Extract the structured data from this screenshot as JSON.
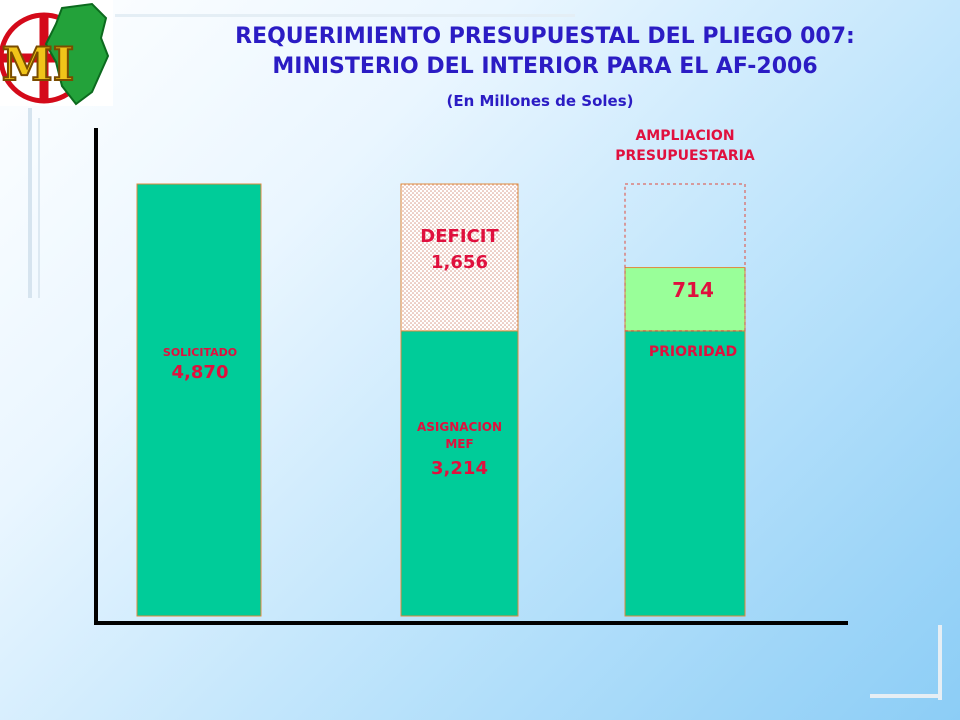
{
  "title": {
    "line1": "REQUERIMIENTO PRESUPUESTAL DEL PLIEGO 007:",
    "line2": "MINISTERIO DEL INTERIOR   PARA EL AF-2006"
  },
  "subtitle": "(En Millones de Soles)",
  "logo": {
    "text": "MI",
    "icon": "peru-map-logo-icon"
  },
  "colors": {
    "title": "#2b1cc4",
    "label": "#e0103e",
    "bar_green": "#00cc99",
    "bar_light_green": "#99ff99",
    "bar_border": "#e08a3c",
    "axis": "#000000"
  },
  "chart_data": {
    "type": "bar",
    "stacked": true,
    "ylim": [
      0,
      4870
    ],
    "categories": [
      "SOLICITADO",
      "ASIGNACION MEF",
      "AMPLIACION PRESUPUESTARIA"
    ],
    "series": [
      {
        "name": "",
        "values": [
          4870,
          3214,
          3214
        ],
        "color": "#00cc99"
      },
      {
        "name": "DEFICIT",
        "values": [
          0,
          1656,
          0
        ],
        "style": "dotted"
      },
      {
        "name": "PRIORIDAD",
        "values": [
          0,
          0,
          1656
        ],
        "style": "dashed-outline",
        "highlight": 714
      }
    ],
    "labels": {
      "bar1_name": "SOLICITADO",
      "bar1_value": "4,870",
      "bar2_name_line1": "ASIGNACION",
      "bar2_name_line2": "MEF",
      "bar2_value": "3,214",
      "deficit_name": "DEFICIT",
      "deficit_value": "1,656",
      "bar3_header_line1": "AMPLIACION",
      "bar3_header_line2": "PRESUPUESTARIA",
      "priority_value": "714",
      "priority_name": "PRIORIDAD"
    }
  }
}
